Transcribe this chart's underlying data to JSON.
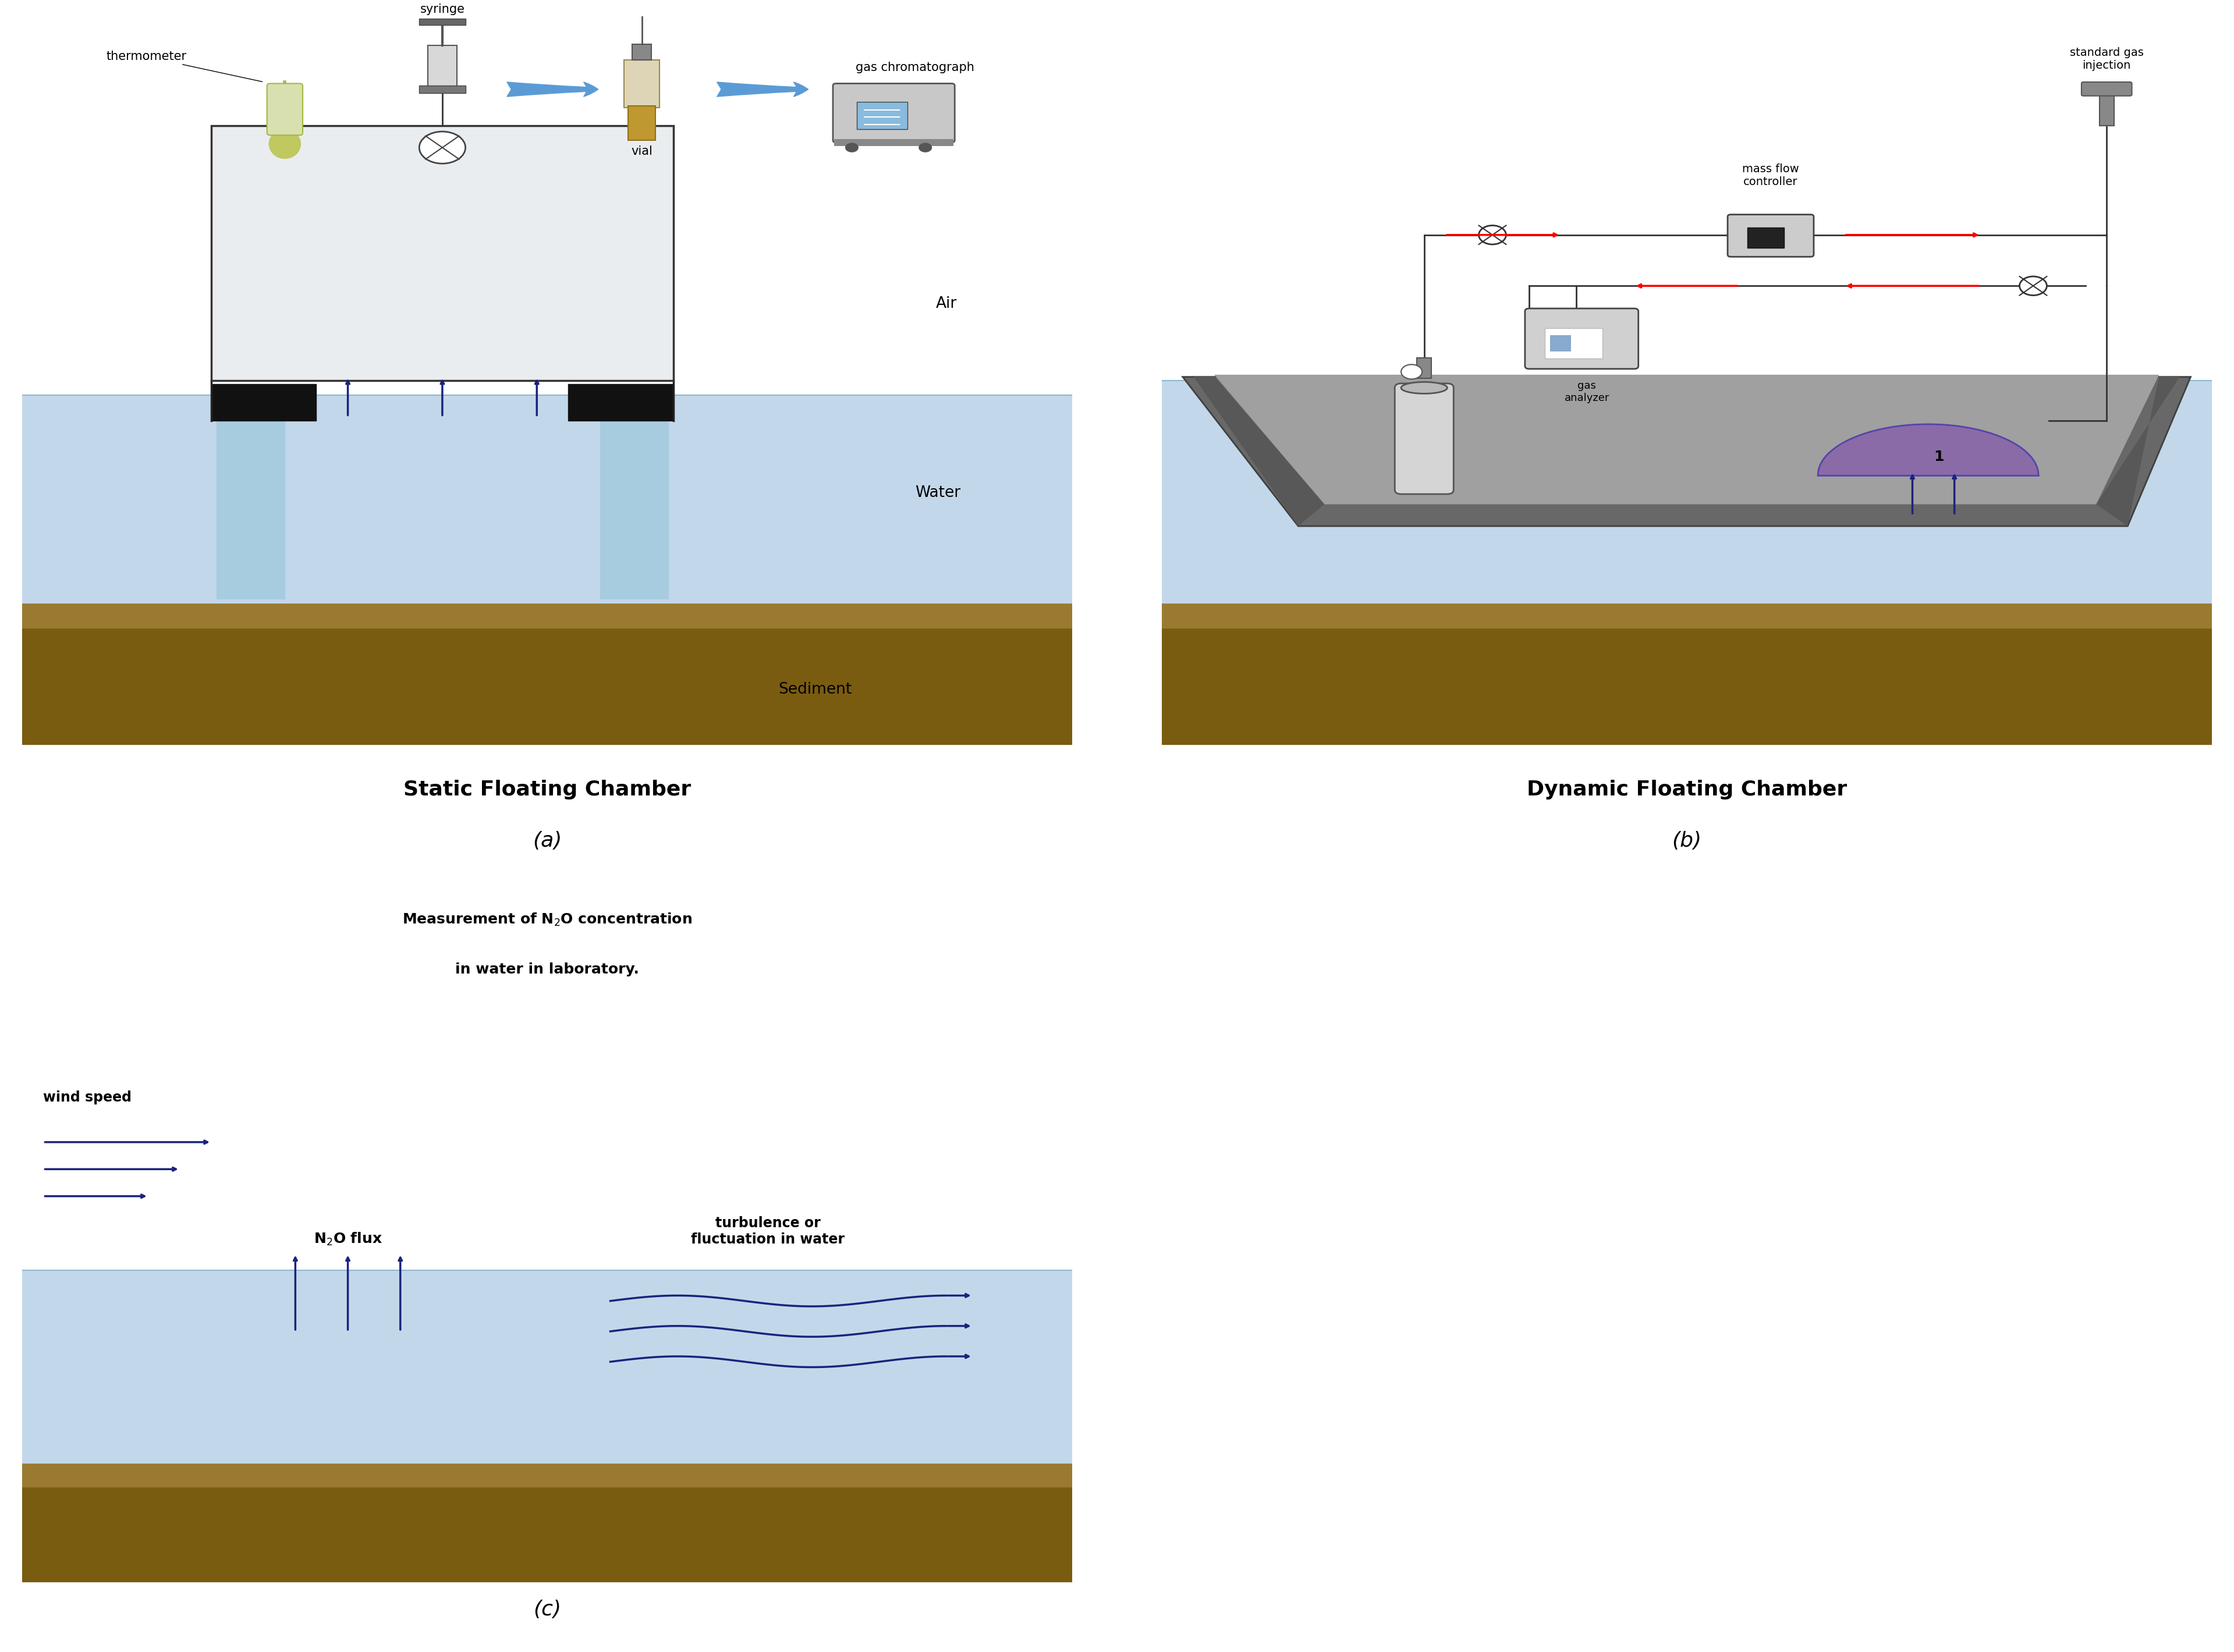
{
  "fig_width": 38.38,
  "fig_height": 28.39,
  "bg_color": "#ffffff",
  "water_color": "#c2d8ea",
  "sediment_dark": "#7a5c10",
  "sediment_light": "#9a7a30",
  "arrow_color": "#1a237e",
  "red_arrow": "#cc0000",
  "chamber_fill": "#e8eaed",
  "panel_a_title": "Static Floating Chamber",
  "panel_b_title": "Dynamic Floating Chamber",
  "label_a": "(a)",
  "label_b": "(b)",
  "label_c": "(c)"
}
